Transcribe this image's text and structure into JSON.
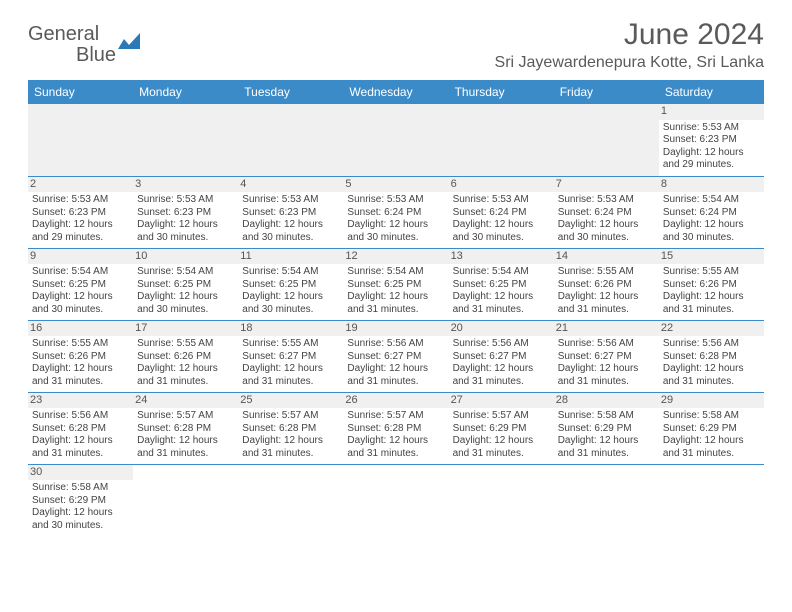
{
  "logo": {
    "text1": "General",
    "text2": "Blue"
  },
  "title": "June 2024",
  "location": "Sri Jayewardenepura Kotte, Sri Lanka",
  "colors": {
    "header_bg": "#3b8bc9",
    "header_text": "#ffffff",
    "cell_border": "#3b8bc9",
    "shade": "#f0f0f0",
    "text": "#444444",
    "title_text": "#5a5a5a"
  },
  "typography": {
    "title_fontsize": 30,
    "location_fontsize": 16,
    "header_fontsize": 12,
    "cell_fontsize": 10
  },
  "days_of_week": [
    "Sunday",
    "Monday",
    "Tuesday",
    "Wednesday",
    "Thursday",
    "Friday",
    "Saturday"
  ],
  "weeks": [
    [
      null,
      null,
      null,
      null,
      null,
      null,
      {
        "day": 1,
        "sunrise": "5:53 AM",
        "sunset": "6:23 PM",
        "daylight": "12 hours and 29 minutes."
      }
    ],
    [
      {
        "day": 2,
        "sunrise": "5:53 AM",
        "sunset": "6:23 PM",
        "daylight": "12 hours and 29 minutes."
      },
      {
        "day": 3,
        "sunrise": "5:53 AM",
        "sunset": "6:23 PM",
        "daylight": "12 hours and 30 minutes."
      },
      {
        "day": 4,
        "sunrise": "5:53 AM",
        "sunset": "6:23 PM",
        "daylight": "12 hours and 30 minutes."
      },
      {
        "day": 5,
        "sunrise": "5:53 AM",
        "sunset": "6:24 PM",
        "daylight": "12 hours and 30 minutes."
      },
      {
        "day": 6,
        "sunrise": "5:53 AM",
        "sunset": "6:24 PM",
        "daylight": "12 hours and 30 minutes."
      },
      {
        "day": 7,
        "sunrise": "5:53 AM",
        "sunset": "6:24 PM",
        "daylight": "12 hours and 30 minutes."
      },
      {
        "day": 8,
        "sunrise": "5:54 AM",
        "sunset": "6:24 PM",
        "daylight": "12 hours and 30 minutes."
      }
    ],
    [
      {
        "day": 9,
        "sunrise": "5:54 AM",
        "sunset": "6:25 PM",
        "daylight": "12 hours and 30 minutes."
      },
      {
        "day": 10,
        "sunrise": "5:54 AM",
        "sunset": "6:25 PM",
        "daylight": "12 hours and 30 minutes."
      },
      {
        "day": 11,
        "sunrise": "5:54 AM",
        "sunset": "6:25 PM",
        "daylight": "12 hours and 30 minutes."
      },
      {
        "day": 12,
        "sunrise": "5:54 AM",
        "sunset": "6:25 PM",
        "daylight": "12 hours and 31 minutes."
      },
      {
        "day": 13,
        "sunrise": "5:54 AM",
        "sunset": "6:25 PM",
        "daylight": "12 hours and 31 minutes."
      },
      {
        "day": 14,
        "sunrise": "5:55 AM",
        "sunset": "6:26 PM",
        "daylight": "12 hours and 31 minutes."
      },
      {
        "day": 15,
        "sunrise": "5:55 AM",
        "sunset": "6:26 PM",
        "daylight": "12 hours and 31 minutes."
      }
    ],
    [
      {
        "day": 16,
        "sunrise": "5:55 AM",
        "sunset": "6:26 PM",
        "daylight": "12 hours and 31 minutes."
      },
      {
        "day": 17,
        "sunrise": "5:55 AM",
        "sunset": "6:26 PM",
        "daylight": "12 hours and 31 minutes."
      },
      {
        "day": 18,
        "sunrise": "5:55 AM",
        "sunset": "6:27 PM",
        "daylight": "12 hours and 31 minutes."
      },
      {
        "day": 19,
        "sunrise": "5:56 AM",
        "sunset": "6:27 PM",
        "daylight": "12 hours and 31 minutes."
      },
      {
        "day": 20,
        "sunrise": "5:56 AM",
        "sunset": "6:27 PM",
        "daylight": "12 hours and 31 minutes."
      },
      {
        "day": 21,
        "sunrise": "5:56 AM",
        "sunset": "6:27 PM",
        "daylight": "12 hours and 31 minutes."
      },
      {
        "day": 22,
        "sunrise": "5:56 AM",
        "sunset": "6:28 PM",
        "daylight": "12 hours and 31 minutes."
      }
    ],
    [
      {
        "day": 23,
        "sunrise": "5:56 AM",
        "sunset": "6:28 PM",
        "daylight": "12 hours and 31 minutes."
      },
      {
        "day": 24,
        "sunrise": "5:57 AM",
        "sunset": "6:28 PM",
        "daylight": "12 hours and 31 minutes."
      },
      {
        "day": 25,
        "sunrise": "5:57 AM",
        "sunset": "6:28 PM",
        "daylight": "12 hours and 31 minutes."
      },
      {
        "day": 26,
        "sunrise": "5:57 AM",
        "sunset": "6:28 PM",
        "daylight": "12 hours and 31 minutes."
      },
      {
        "day": 27,
        "sunrise": "5:57 AM",
        "sunset": "6:29 PM",
        "daylight": "12 hours and 31 minutes."
      },
      {
        "day": 28,
        "sunrise": "5:58 AM",
        "sunset": "6:29 PM",
        "daylight": "12 hours and 31 minutes."
      },
      {
        "day": 29,
        "sunrise": "5:58 AM",
        "sunset": "6:29 PM",
        "daylight": "12 hours and 31 minutes."
      }
    ],
    [
      {
        "day": 30,
        "sunrise": "5:58 AM",
        "sunset": "6:29 PM",
        "daylight": "12 hours and 30 minutes."
      },
      null,
      null,
      null,
      null,
      null,
      null
    ]
  ],
  "labels": {
    "sunrise": "Sunrise:",
    "sunset": "Sunset:",
    "daylight": "Daylight:"
  }
}
